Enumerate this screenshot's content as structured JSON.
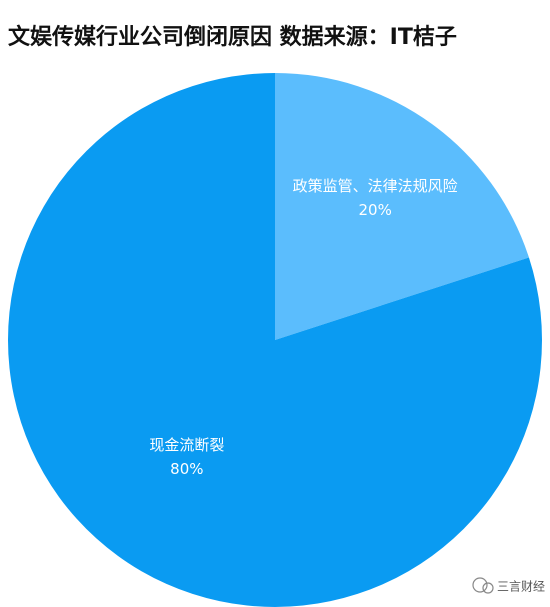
{
  "chart_data": {
    "type": "pie",
    "title": "文娱传媒行业公司倒闭原因 数据来源：IT桔子",
    "categories": [
      "政策监管、法律法规风险",
      "现金流断裂"
    ],
    "values": [
      20,
      80
    ],
    "value_labels": [
      "20%",
      "80%"
    ],
    "colors": [
      "#5bbdfd",
      "#0a9bf2"
    ]
  },
  "watermark": "三言财经"
}
